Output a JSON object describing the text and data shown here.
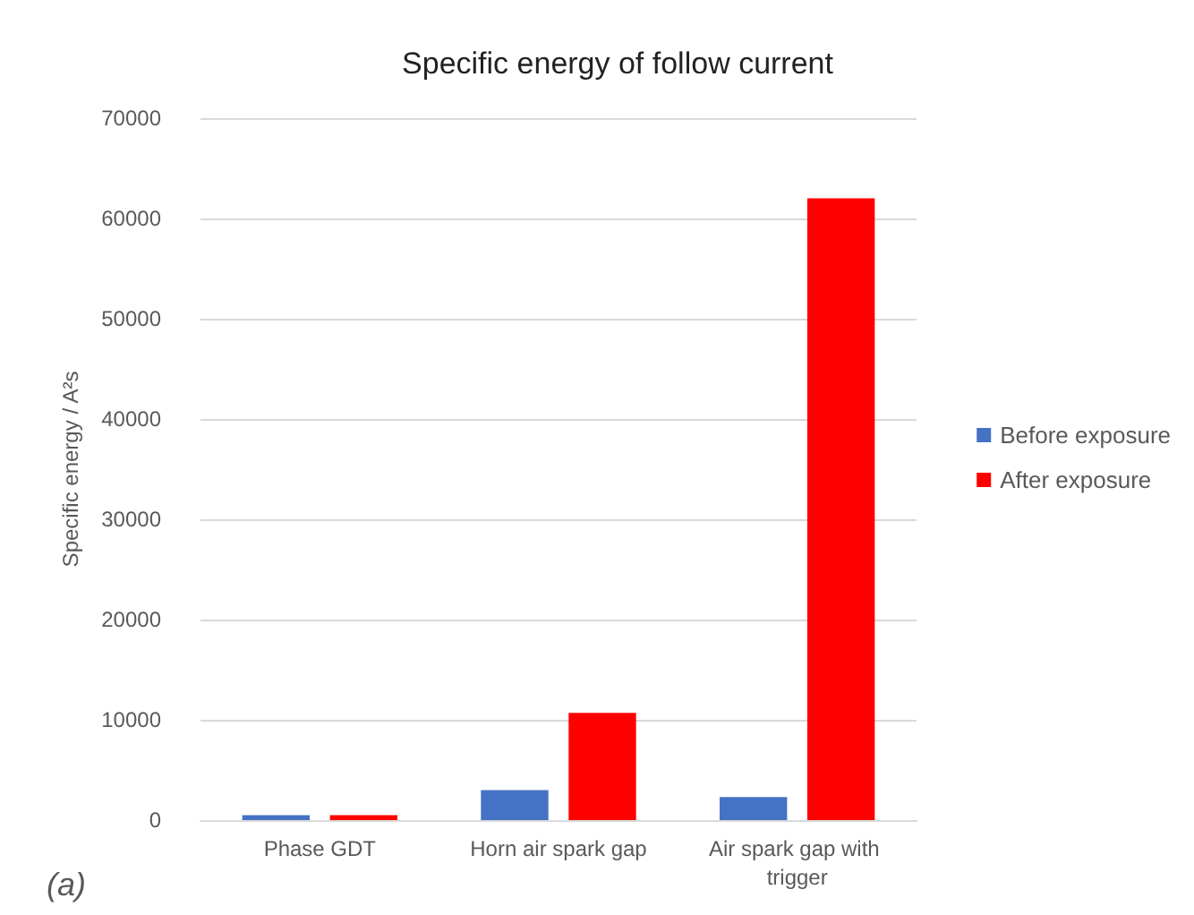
{
  "chart_data": {
    "type": "bar",
    "title": "Specific energy of follow current",
    "ylabel": "Specific energy / A²s",
    "categories": [
      "Phase GDT",
      "Horn air spark gap",
      "Air spark gap with trigger"
    ],
    "series": [
      {
        "name": "Before exposure",
        "color": "#4472c4",
        "values": [
          500,
          3000,
          2300
        ]
      },
      {
        "name": "After exposure",
        "color": "#ff0000",
        "values": [
          500,
          10700,
          62000
        ]
      }
    ],
    "ylim": [
      0,
      70000
    ],
    "yticks": [
      0,
      10000,
      20000,
      30000,
      40000,
      50000,
      60000,
      70000
    ],
    "grid": "y",
    "legend": "right",
    "annotations": [
      "(a)"
    ]
  }
}
